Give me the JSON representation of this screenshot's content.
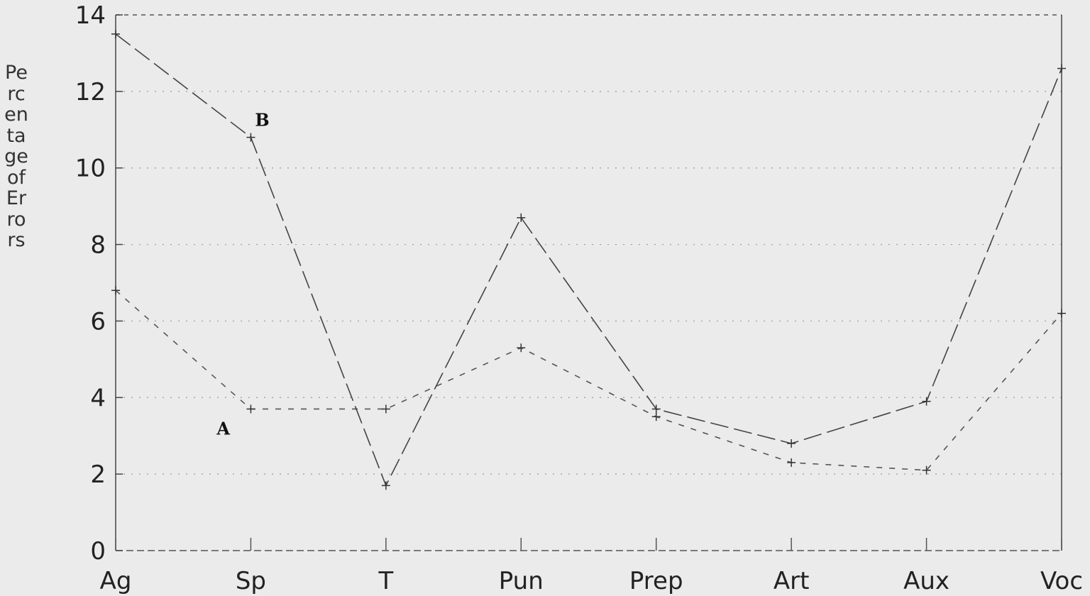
{
  "chart_data": {
    "type": "line",
    "title": "",
    "xlabel": "",
    "ylabel": "Percentage of Errors",
    "categories": [
      "Ag",
      "Sp",
      "T",
      "Pun",
      "Prep",
      "Art",
      "Aux",
      "Voc"
    ],
    "ylim": [
      0,
      14
    ],
    "yticks": [
      0,
      2,
      4,
      6,
      8,
      10,
      12,
      14
    ],
    "grid": "horizontal dotted",
    "series": [
      {
        "name": "A",
        "values": [
          6.8,
          3.7,
          3.7,
          5.3,
          3.5,
          2.3,
          2.1,
          6.2
        ],
        "color": "#555555",
        "dash": "8,10"
      },
      {
        "name": "B",
        "values": [
          13.5,
          10.8,
          1.7,
          8.7,
          3.7,
          2.8,
          3.9,
          12.6
        ],
        "color": "#444444",
        "dash": "26,8"
      }
    ]
  }
}
